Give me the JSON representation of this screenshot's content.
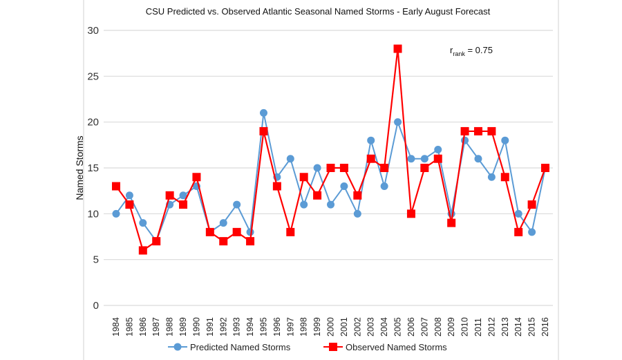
{
  "chart_data": {
    "type": "line",
    "title": "CSU Predicted vs. Observed Atlantic Seasonal Named Storms - Early August Forecast",
    "xlabel": "",
    "ylabel": "Named Storms",
    "ylim": [
      0,
      30
    ],
    "yticks": [
      0,
      5,
      10,
      15,
      20,
      25,
      30
    ],
    "grid": true,
    "legend_position": "bottom",
    "annotation": {
      "base": "r",
      "subscript": "rank",
      "text": " = 0.75"
    },
    "categories": [
      "1984",
      "1985",
      "1986",
      "1987",
      "1988",
      "1989",
      "1990",
      "1991",
      "1992",
      "1993",
      "1994",
      "1995",
      "1996",
      "1997",
      "1998",
      "1999",
      "2000",
      "2001",
      "2002",
      "2003",
      "2004",
      "2005",
      "2006",
      "2007",
      "2008",
      "2009",
      "2010",
      "2011",
      "2012",
      "2013",
      "2014",
      "2015",
      "2016"
    ],
    "series": [
      {
        "name": "Predicted Named Storms",
        "color": "#5b9bd5",
        "marker": "circle",
        "values": [
          10,
          12,
          9,
          7,
          11,
          12,
          13,
          8,
          9,
          11,
          8,
          21,
          14,
          16,
          11,
          15,
          11,
          13,
          10,
          18,
          13,
          20,
          16,
          16,
          17,
          10,
          18,
          16,
          14,
          18,
          10,
          8,
          15
        ]
      },
      {
        "name": "Observed Named Storms",
        "color": "#ff0000",
        "marker": "square",
        "values": [
          13,
          11,
          6,
          7,
          12,
          11,
          14,
          8,
          7,
          8,
          7,
          19,
          13,
          8,
          14,
          12,
          15,
          15,
          12,
          16,
          15,
          28,
          10,
          15,
          16,
          9,
          19,
          19,
          19,
          14,
          8,
          11,
          15
        ]
      }
    ]
  }
}
